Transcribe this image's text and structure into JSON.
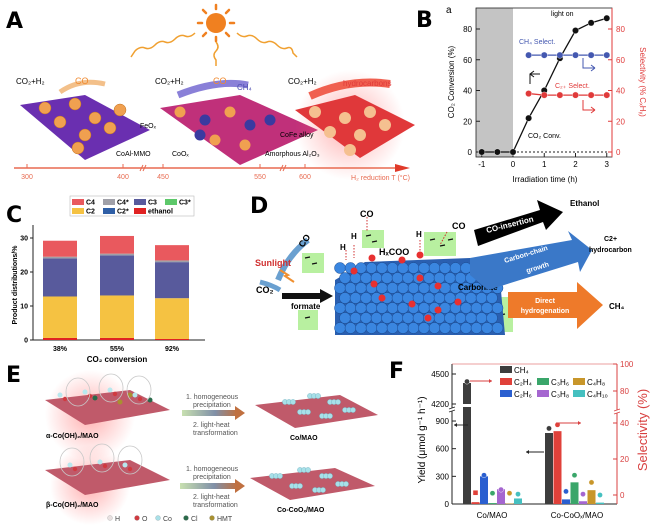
{
  "panel_labels": {
    "A": "A",
    "B": "B",
    "C": "C",
    "D": "D",
    "E": "E",
    "F": "F"
  },
  "panel_a": {
    "stage1": {
      "reactants": "CO₂+H₂",
      "product": "CO"
    },
    "stage2": {
      "reactants": "CO₂+H₂",
      "product1": "CO",
      "product2": "CH₄"
    },
    "stage3": {
      "reactants": "CO₂+H₂",
      "product": "hydrocarbons"
    },
    "labels": {
      "feox": "FeOₓ",
      "coal_mmo": "CoAl-MMO",
      "coox": "CoOₓ",
      "cofe": "CoFe alloy",
      "al2o3": "Amorphous Al₂O₃"
    },
    "timeline": {
      "ticks": [
        "300",
        "400",
        "450",
        "550",
        "600"
      ],
      "label": "H₂ reduction T (°C)"
    },
    "colors": {
      "slab1": "#6a2fb0",
      "slab2": "#c0307a",
      "slab3": "#e0383a",
      "particle": "#f0a050",
      "coox": "#3a3aa0",
      "sun": "#f08020"
    }
  },
  "panel_d": {
    "sunlight": "Sunlight",
    "co2": "CO₂",
    "formate": "formate",
    "carbonate": "Carbonate",
    "co_left": "CO",
    "co_top": "CO",
    "co_right": "CO",
    "h1": "H",
    "h2": "H",
    "h3": "H",
    "h4": "H",
    "hxcoo": "HₓCOO",
    "arrows": [
      {
        "label": "CO-insertion",
        "product": "Ethanol",
        "color": "#000000"
      },
      {
        "label_line1": "Carbon-chain",
        "label_line2": "growth",
        "product_line1": "C2+",
        "product_line2": "hydrocarbon",
        "color": "#3a78c8"
      },
      {
        "label_line1": "Direct",
        "label_line2": "hydrogenation",
        "product": "CH₄",
        "color": "#ee7a2a"
      }
    ]
  },
  "panel_e": {
    "step1_line1": "1. homogeneous",
    "step1_line2": "precipitation",
    "step2_line1": "2. light-heat",
    "step2_line2": "transformation",
    "alpha": "α-Co(OH)₂/MAO",
    "beta": "β-Co(OH)₂/MAO",
    "co_mao": "Co/MAO",
    "co_coox_mao": "Co-CoOₓ/MAO",
    "legend": [
      {
        "label": "H",
        "color": "#e8e0e0"
      },
      {
        "label": "O",
        "color": "#d03a40"
      },
      {
        "label": "Co",
        "color": "#a8e0e8"
      },
      {
        "label": "Cl",
        "color": "#2a6a4a"
      },
      {
        "label": "HMT",
        "color": "#a89030"
      }
    ]
  },
  "chart_data": [
    {
      "panel": "B",
      "type": "line",
      "sublabel": "a",
      "xlabel": "Irradiation time (h)",
      "ylabel": "CO₂ Conversion (%)",
      "y2label": "Selectivity (% CₓHᵧ)",
      "xlim": [
        -1.2,
        3.2
      ],
      "ylim": [
        0,
        90
      ],
      "y2lim": [
        0,
        90
      ],
      "xticks": [
        "-1",
        "0",
        "1",
        "2",
        "3"
      ],
      "yticks": [
        "0",
        "20",
        "40",
        "60",
        "80"
      ],
      "y2ticks": [
        "0",
        "20",
        "40",
        "60",
        "80"
      ],
      "regions": {
        "dark": "dark",
        "light": "light on"
      },
      "series": [
        {
          "name": "CO₂ Conv.",
          "axis": "left",
          "color": "#111111",
          "x": [
            -1,
            -0.5,
            0,
            0.5,
            1,
            1.5,
            2,
            2.5,
            3
          ],
          "y": [
            0,
            0,
            0,
            22,
            40,
            61,
            79,
            84,
            87
          ]
        },
        {
          "name": "CH₄ Select.",
          "axis": "right",
          "color": "#4458b0",
          "x": [
            0.5,
            1,
            1.5,
            2,
            2.5,
            3
          ],
          "y": [
            63,
            63,
            63,
            63,
            63,
            63
          ]
        },
        {
          "name": "C₂₊ Select.",
          "axis": "right",
          "color": "#e03a3a",
          "x": [
            0.5,
            1,
            1.5,
            2,
            2.5,
            3
          ],
          "y": [
            38,
            37,
            37,
            37,
            37,
            37
          ]
        }
      ]
    },
    {
      "panel": "C",
      "type": "bar",
      "stacked": true,
      "categories": [
        "38%",
        "55%",
        "92%"
      ],
      "xlabel": "CO₂ conversion",
      "ylabel": "Product distributions/%",
      "ylim": [
        0,
        34
      ],
      "yticks": [
        "0",
        "10",
        "20",
        "30"
      ],
      "legend": "top",
      "series": [
        {
          "name": "ethanol",
          "color": "#e02222",
          "values": [
            0.6,
            0.6,
            0.3
          ]
        },
        {
          "name": "C2",
          "color": "#f5c242",
          "values": [
            12.2,
            12.5,
            12.0
          ]
        },
        {
          "name": "C2*",
          "color": "#2f5fa6",
          "values": [
            0,
            0,
            0
          ]
        },
        {
          "name": "C3",
          "color": "#585a9c",
          "values": [
            11.2,
            11.8,
            10.6
          ]
        },
        {
          "name": "C3*",
          "color": "#5dc86a",
          "values": [
            0,
            0,
            0
          ]
        },
        {
          "name": "C4*",
          "color": "#a0a0a8",
          "values": [
            0.5,
            0.5,
            0.5
          ]
        },
        {
          "name": "C4",
          "color": "#e9595e",
          "values": [
            4.7,
            5.2,
            4.5
          ]
        }
      ],
      "legend_order": [
        "C4",
        "C4*",
        "C3",
        "C3*",
        "C2",
        "C2*",
        "ethanol"
      ]
    },
    {
      "panel": "F",
      "type": "bar",
      "categories": [
        "Co/MAO",
        "Co-CoOₓ/MAO"
      ],
      "ylabel": "Yield (μmol g⁻¹ h⁻¹)",
      "y2label": "Selectivity (%)",
      "yticks": [
        "0",
        "300",
        "600",
        "900",
        "4200",
        "4500"
      ],
      "y2ticks": [
        "0",
        "20",
        "40",
        "80",
        "100"
      ],
      "y_break": [
        900,
        4200
      ],
      "y2_break": [
        40,
        80
      ],
      "legend": "top",
      "series": [
        {
          "name": "CH₄",
          "color": "#3d3d3d",
          "yield": [
            4410,
            770
          ],
          "selectivity": [
            87,
            37
          ]
        },
        {
          "name": "C₂H₄",
          "color": "#e0413a",
          "yield": [
            20,
            790
          ],
          "selectivity": [
            1,
            39
          ]
        },
        {
          "name": "C₂H₆",
          "color": "#2a5fd0",
          "yield": [
            300,
            50
          ],
          "selectivity": [
            11,
            2
          ]
        },
        {
          "name": "C₃H₆",
          "color": "#3aa66a",
          "yield": [
            10,
            235
          ],
          "selectivity": [
            1,
            11
          ]
        },
        {
          "name": "C₃H₈",
          "color": "#a566d0",
          "yield": [
            160,
            30
          ],
          "selectivity": [
            3,
            0.5
          ]
        },
        {
          "name": "C₄H₈",
          "color": "#c8962a",
          "yield": [
            5,
            150
          ],
          "selectivity": [
            1,
            7
          ]
        },
        {
          "name": "C₄H₁₀",
          "color": "#45c0c0",
          "yield": [
            60,
            15
          ],
          "selectivity": [
            0.5,
            0
          ]
        }
      ]
    }
  ]
}
